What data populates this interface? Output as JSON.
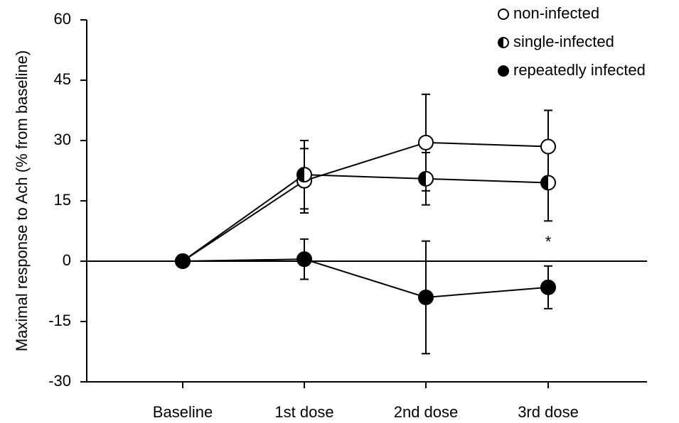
{
  "chart_data": {
    "type": "line",
    "y_label": "Maximal response to Ach (% from baseline)",
    "categories": [
      "Baseline",
      "1st dose",
      "2nd dose",
      "3rd dose"
    ],
    "series": [
      {
        "name": "non-infected",
        "marker": "open",
        "color": "#000000",
        "values": [
          0,
          20,
          29.5,
          28.5
        ],
        "errors": [
          0,
          8,
          12,
          9
        ]
      },
      {
        "name": "single-infected",
        "marker": "half",
        "color": "#000000",
        "values": [
          0,
          21.5,
          20.5,
          19.5
        ],
        "errors": [
          0,
          8.5,
          6.5,
          9.5
        ]
      },
      {
        "name": "repeatedly infected",
        "marker": "filled",
        "color": "#000000",
        "values": [
          0,
          0.5,
          -9,
          -6.5
        ],
        "errors": [
          0,
          5,
          14,
          5.3
        ]
      }
    ],
    "annotations": [
      {
        "text": "*",
        "category": "3rd dose"
      }
    ],
    "ylim": [
      -30,
      60
    ],
    "yticks": [
      -30,
      -15,
      0,
      15,
      30,
      45,
      60
    ],
    "legend": "top-right"
  }
}
